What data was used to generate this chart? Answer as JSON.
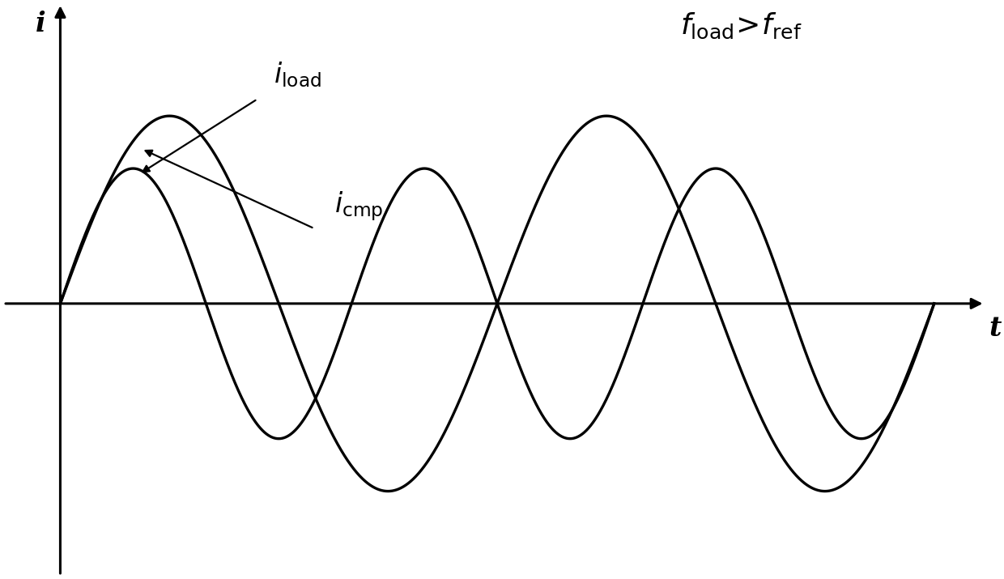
{
  "xlabel": "t",
  "ylabel": "i",
  "iload_cycles": 3.0,
  "iload_amplitude": 0.72,
  "icmp_cycles": 2.0,
  "icmp_amplitude": 1.0,
  "t_start": 0.0,
  "t_end": 4.3,
  "line_color": "#000000",
  "line_width": 2.4,
  "background_color": "#ffffff",
  "axis_color": "#000000",
  "xlim": [
    -0.28,
    4.55
  ],
  "ylim": [
    -1.45,
    1.6
  ]
}
